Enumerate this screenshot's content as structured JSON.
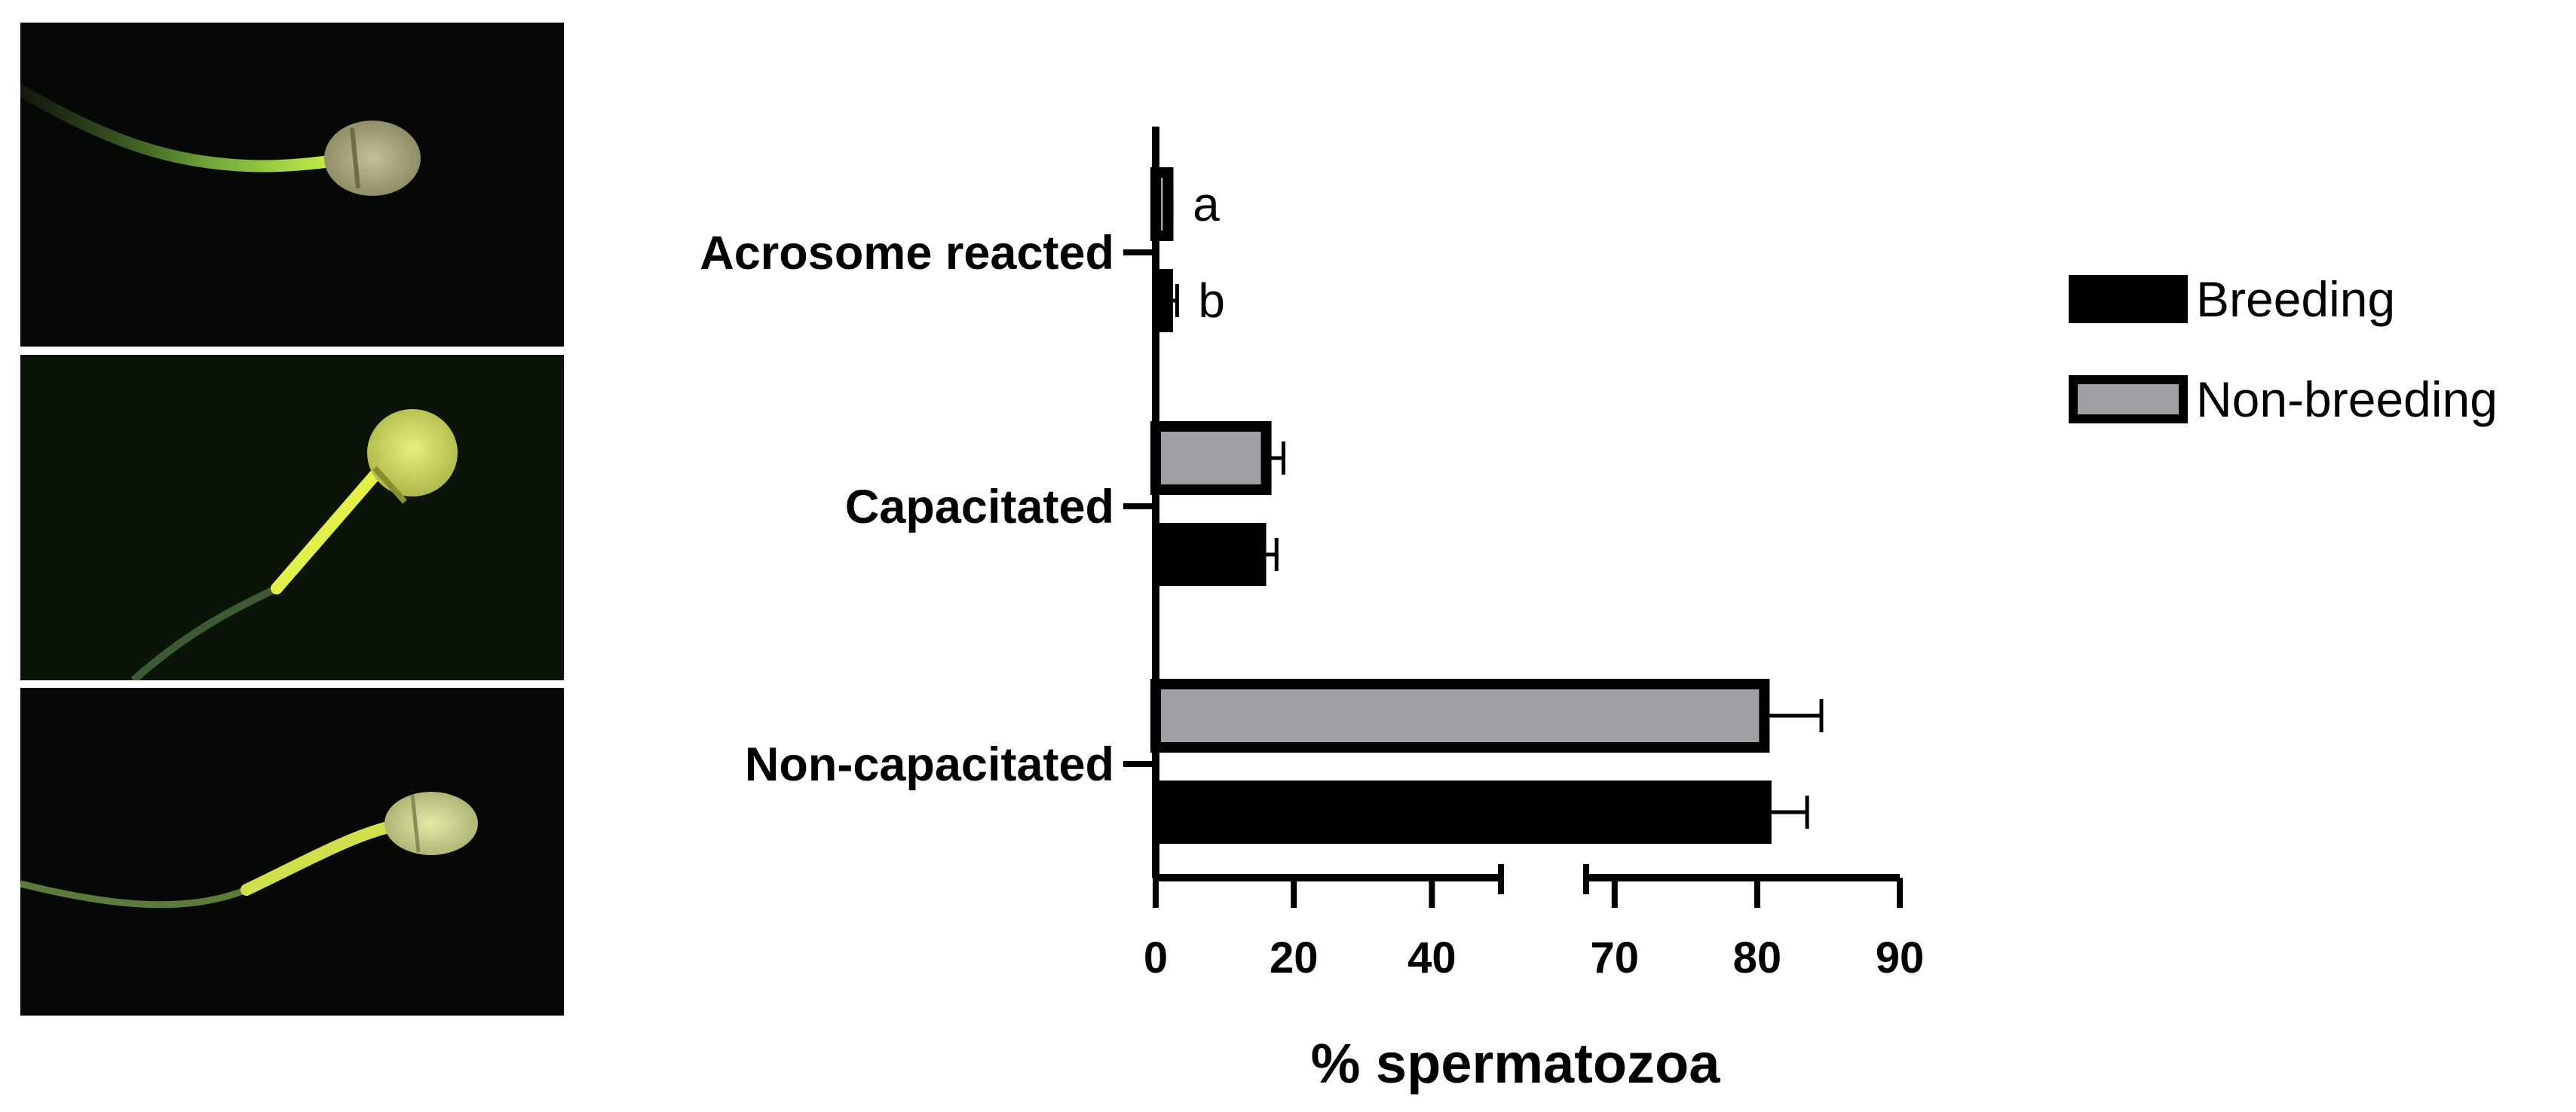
{
  "images": [
    {
      "name": "sperm-micrograph-acrosome-reacted"
    },
    {
      "name": "sperm-micrograph-capacitated"
    },
    {
      "name": "sperm-micrograph-non-capacitated"
    }
  ],
  "colors": {
    "breeding": "#000000",
    "non_breeding": "#a0a0a4",
    "background": "#ffffff",
    "micrograph_bg": "#050805",
    "fluorescence": "#c8e03c"
  },
  "chart_data": {
    "type": "bar",
    "orientation": "horizontal",
    "categories": [
      "Acrosome reacted",
      "Capacitated",
      "Non-capacitated"
    ],
    "series": [
      {
        "name": "Breeding",
        "values": [
          2.5,
          16,
          81
        ],
        "errors": [
          0.6,
          1.5,
          2.5
        ]
      },
      {
        "name": "Non-breeding",
        "values": [
          1.8,
          16,
          80.5
        ],
        "errors": [
          0.5,
          2.5,
          4
        ]
      }
    ],
    "annotations": [
      {
        "category": "Acrosome reacted",
        "series": "Non-breeding",
        "text": "a"
      },
      {
        "category": "Acrosome reacted",
        "series": "Breeding",
        "text": "b"
      }
    ],
    "xlabel": "% spermatozoa",
    "ylabel": "",
    "x_ticks": [
      "0",
      "20",
      "40",
      "70",
      "80",
      "90"
    ],
    "x_break": {
      "from": 50,
      "to": 68
    },
    "xlim": [
      0,
      90
    ],
    "legend": {
      "position": "right",
      "entries": [
        "Breeding",
        "Non-breeding"
      ]
    },
    "grid": false
  }
}
